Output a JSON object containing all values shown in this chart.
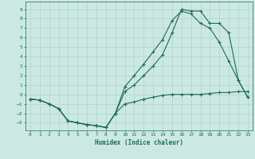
{
  "xlabel": "Humidex (Indice chaleur)",
  "xlim": [
    -0.5,
    23.5
  ],
  "ylim": [
    -3.8,
    9.8
  ],
  "xticks": [
    0,
    1,
    2,
    3,
    4,
    5,
    6,
    7,
    8,
    9,
    10,
    11,
    12,
    13,
    14,
    15,
    16,
    17,
    18,
    19,
    20,
    21,
    22,
    23
  ],
  "yticks": [
    -3,
    -2,
    -1,
    0,
    1,
    2,
    3,
    4,
    5,
    6,
    7,
    8,
    9
  ],
  "bg_color": "#cce9e1",
  "grid_color": "#b8d8d0",
  "line_color": "#1a6b5a",
  "line1_x": [
    0,
    1,
    2,
    3,
    4,
    5,
    6,
    7,
    8,
    9,
    10,
    11,
    12,
    13,
    14,
    15,
    16,
    17,
    18,
    19,
    20,
    21,
    22,
    23
  ],
  "line1_y": [
    -0.5,
    -0.6,
    -1.0,
    -1.5,
    -2.8,
    -3.0,
    -3.2,
    -3.3,
    -3.5,
    -2.0,
    -1.0,
    -0.8,
    -0.5,
    -0.3,
    -0.1,
    0.0,
    0.0,
    0.0,
    0.0,
    0.1,
    0.2,
    0.2,
    0.3,
    0.3
  ],
  "line2_x": [
    0,
    1,
    2,
    3,
    4,
    5,
    6,
    7,
    8,
    9,
    10,
    11,
    12,
    13,
    14,
    15,
    16,
    17,
    18,
    19,
    20,
    21,
    22,
    23
  ],
  "line2_y": [
    -0.5,
    -0.6,
    -1.0,
    -1.5,
    -2.8,
    -3.0,
    -3.2,
    -3.3,
    -3.5,
    -2.0,
    0.8,
    2.0,
    3.2,
    4.5,
    5.8,
    7.8,
    8.8,
    8.5,
    7.5,
    7.0,
    5.5,
    3.5,
    1.5,
    -0.3
  ],
  "line3_x": [
    0,
    1,
    2,
    3,
    4,
    5,
    6,
    7,
    8,
    9,
    10,
    11,
    12,
    13,
    14,
    15,
    16,
    17,
    18,
    19,
    20,
    21,
    22,
    23
  ],
  "line3_y": [
    -0.5,
    -0.6,
    -1.0,
    -1.5,
    -2.8,
    -3.0,
    -3.2,
    -3.3,
    -3.5,
    -2.0,
    0.3,
    1.0,
    2.0,
    3.0,
    4.2,
    6.5,
    9.0,
    8.8,
    8.8,
    7.5,
    7.5,
    6.5,
    1.5,
    -0.3
  ]
}
